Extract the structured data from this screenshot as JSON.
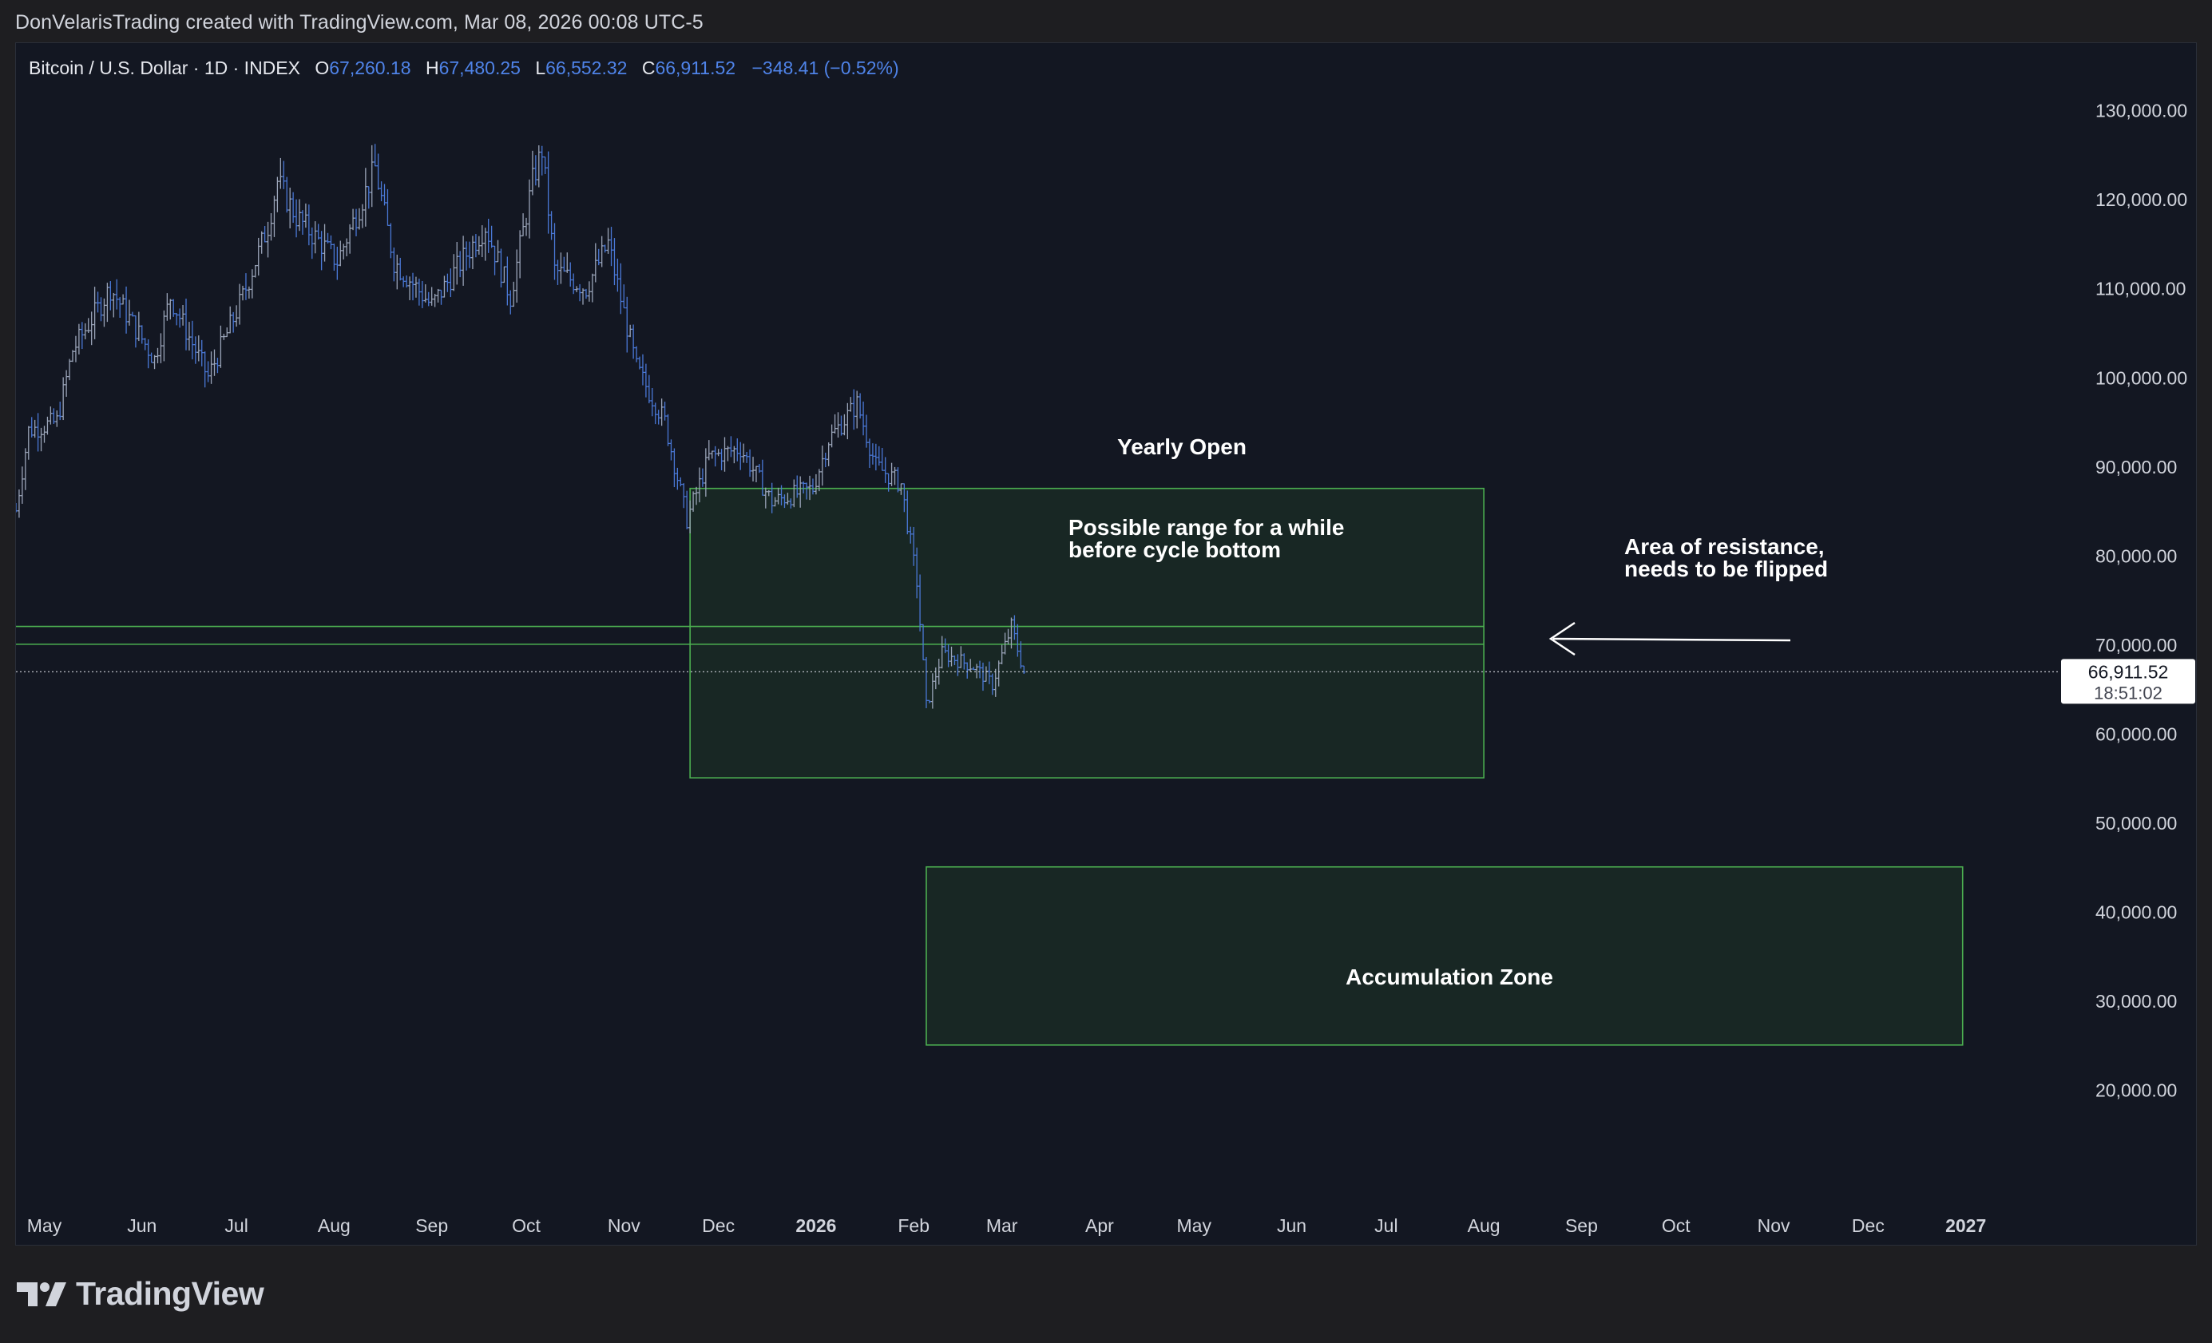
{
  "header": {
    "attribution": "DonVelarisTrading created with TradingView.com, Mar 08, 2026 00:08 UTC-5"
  },
  "legend": {
    "symbol": "Bitcoin / U.S. Dollar · 1D · INDEX",
    "open_label": "O",
    "open": "67,260.18",
    "high_label": "H",
    "high": "67,480.25",
    "low_label": "L",
    "low": "66,552.32",
    "close_label": "C",
    "close": "66,911.52",
    "change": "−348.41 (−0.52%)"
  },
  "price_label": {
    "price": "66,911.52",
    "countdown": "18:51:02"
  },
  "footer": {
    "brand": "TradingView"
  },
  "colors": {
    "background": "#131722",
    "candle": "#4a78d6",
    "candle_alt": "#9aa4b8",
    "zone_stroke": "#4caf50",
    "zone_fill": "#1a2a24",
    "annotation_text": "#ffffff"
  },
  "chart_data": {
    "type": "candlestick",
    "title": "Bitcoin / U.S. Dollar · 1D · INDEX",
    "ylim": [
      7500,
      137500
    ],
    "y_ticks": [
      130000,
      120000,
      110000,
      100000,
      90000,
      80000,
      70000,
      60000,
      50000,
      40000,
      30000,
      20000
    ],
    "y_tick_labels": [
      "130,000.00",
      "120,000.00",
      "110,000.00",
      "100,000.00",
      "90,000.00",
      "80,000.00",
      "70,000.00",
      "60,000.00",
      "50,000.00",
      "40,000.00",
      "30,000.00",
      "20,000.00"
    ],
    "x_range": [
      "2025-04-22",
      "2027-01-31"
    ],
    "x_ticks": [
      {
        "date": "2025-05-01",
        "label": "May",
        "bold": false
      },
      {
        "date": "2025-06-01",
        "label": "Jun",
        "bold": false
      },
      {
        "date": "2025-07-01",
        "label": "Jul",
        "bold": false
      },
      {
        "date": "2025-08-01",
        "label": "Aug",
        "bold": false
      },
      {
        "date": "2025-09-01",
        "label": "Sep",
        "bold": false
      },
      {
        "date": "2025-10-01",
        "label": "Oct",
        "bold": false
      },
      {
        "date": "2025-11-01",
        "label": "Nov",
        "bold": false
      },
      {
        "date": "2025-12-01",
        "label": "Dec",
        "bold": false
      },
      {
        "date": "2026-01-01",
        "label": "2026",
        "bold": true
      },
      {
        "date": "2026-02-01",
        "label": "Feb",
        "bold": false
      },
      {
        "date": "2026-03-01",
        "label": "Mar",
        "bold": false
      },
      {
        "date": "2026-04-01",
        "label": "Apr",
        "bold": false
      },
      {
        "date": "2026-05-01",
        "label": "May",
        "bold": false
      },
      {
        "date": "2026-06-01",
        "label": "Jun",
        "bold": false
      },
      {
        "date": "2026-07-01",
        "label": "Jul",
        "bold": false
      },
      {
        "date": "2026-08-01",
        "label": "Aug",
        "bold": false
      },
      {
        "date": "2026-09-01",
        "label": "Sep",
        "bold": false
      },
      {
        "date": "2026-10-01",
        "label": "Oct",
        "bold": false
      },
      {
        "date": "2026-11-01",
        "label": "Nov",
        "bold": false
      },
      {
        "date": "2026-12-01",
        "label": "Dec",
        "bold": false
      },
      {
        "date": "2027-01-01",
        "label": "2027",
        "bold": true
      }
    ],
    "price_path": [
      [
        "2025-04-22",
        85000
      ],
      [
        "2025-04-26",
        94000
      ],
      [
        "2025-05-05",
        95000
      ],
      [
        "2025-05-10",
        103000
      ],
      [
        "2025-05-22",
        110000
      ],
      [
        "2025-06-05",
        102000
      ],
      [
        "2025-06-10",
        109000
      ],
      [
        "2025-06-22",
        100000
      ],
      [
        "2025-07-03",
        109000
      ],
      [
        "2025-07-11",
        117000
      ],
      [
        "2025-07-14",
        122000
      ],
      [
        "2025-07-20",
        118000
      ],
      [
        "2025-08-02",
        113000
      ],
      [
        "2025-08-14",
        123500
      ],
      [
        "2025-08-20",
        113000
      ],
      [
        "2025-09-01",
        108000
      ],
      [
        "2025-09-18",
        117000
      ],
      [
        "2025-09-26",
        109000
      ],
      [
        "2025-10-03",
        122000
      ],
      [
        "2025-10-06",
        125500
      ],
      [
        "2025-10-10",
        112000
      ],
      [
        "2025-10-20",
        110000
      ],
      [
        "2025-10-27",
        115000
      ],
      [
        "2025-11-05",
        101000
      ],
      [
        "2025-11-14",
        95000
      ],
      [
        "2025-11-21",
        84000
      ],
      [
        "2025-11-28",
        91000
      ],
      [
        "2025-12-08",
        92000
      ],
      [
        "2025-12-18",
        86000
      ],
      [
        "2025-12-31",
        87500
      ],
      [
        "2026-01-05",
        93000
      ],
      [
        "2026-01-14",
        97000
      ],
      [
        "2026-01-20",
        90000
      ],
      [
        "2026-01-28",
        88000
      ],
      [
        "2026-02-02",
        77000
      ],
      [
        "2026-02-05",
        63000
      ],
      [
        "2026-02-10",
        69000
      ],
      [
        "2026-02-20",
        67500
      ],
      [
        "2026-02-26",
        65500
      ],
      [
        "2026-03-04",
        72000
      ],
      [
        "2026-03-08",
        66911.52
      ]
    ],
    "last_price": 66911.52,
    "horizontal_lines": [
      72000,
      70000
    ],
    "zones": [
      {
        "name": "possible-range-zone",
        "from": "2025-11-22",
        "to": "2026-08-01",
        "top": 87500,
        "bottom": 55000
      },
      {
        "name": "accumulation-zone",
        "from": "2026-02-05",
        "to": "2026-12-31",
        "top": 45000,
        "bottom": 25000
      }
    ],
    "annotations": {
      "yearly_open": "Yearly Open",
      "possible_range_line1": "Possible range for a while",
      "possible_range_line2": "before cycle bottom",
      "resistance_line1": "Area of resistance,",
      "resistance_line2": "needs to be flipped",
      "accumulation": "Accumulation Zone"
    }
  }
}
